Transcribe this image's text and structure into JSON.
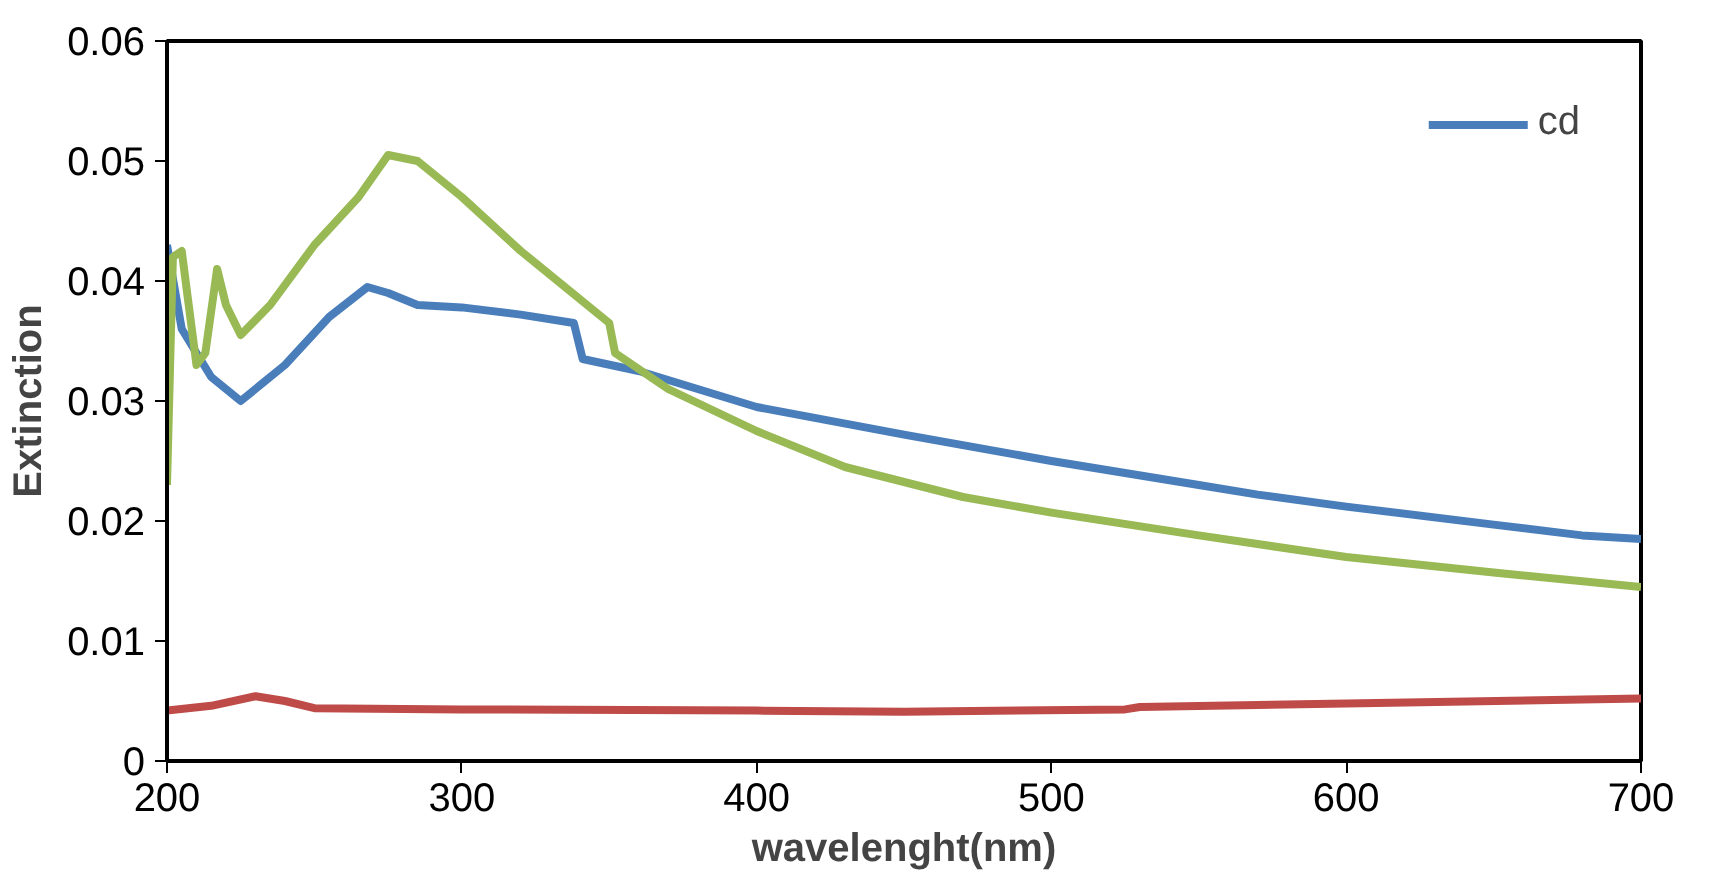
{
  "chart_data": {
    "type": "line",
    "xlabel": "wavelenght(nm)",
    "ylabel": "Extinction",
    "xlim": [
      200,
      700
    ],
    "xticks": [
      200,
      300,
      400,
      500,
      600,
      700
    ],
    "ylim": [
      0,
      0.06
    ],
    "yticks": [
      0,
      0.01,
      0.02,
      0.03,
      0.04,
      0.05,
      0.06
    ],
    "grid": false,
    "legend": "top right",
    "marker": "none",
    "line_style": "solid",
    "series": [
      {
        "name": "cd",
        "color": "#4a7ebb",
        "x": [
          200,
          205,
          215,
          225,
          240,
          255,
          268,
          275,
          285,
          300,
          320,
          338,
          341,
          360,
          400,
          450,
          500,
          550,
          570,
          600,
          650,
          680,
          700
        ],
        "values": [
          0.043,
          0.036,
          0.032,
          0.03,
          0.033,
          0.037,
          0.0395,
          0.039,
          0.038,
          0.0378,
          0.0372,
          0.0365,
          0.0335,
          0.0325,
          0.0295,
          0.0272,
          0.025,
          0.023,
          0.0222,
          0.0212,
          0.0197,
          0.0188,
          0.0185
        ]
      },
      {
        "color": "#98b954",
        "x": [
          200,
          202,
          205,
          210,
          213,
          217,
          220,
          225,
          235,
          250,
          265,
          275,
          285,
          300,
          320,
          345,
          350,
          352,
          370,
          400,
          430,
          470,
          500,
          550,
          600,
          650,
          700
        ],
        "values": [
          0.023,
          0.042,
          0.0425,
          0.033,
          0.034,
          0.041,
          0.038,
          0.0355,
          0.038,
          0.043,
          0.047,
          0.0505,
          0.05,
          0.047,
          0.0425,
          0.0375,
          0.0365,
          0.034,
          0.031,
          0.0275,
          0.0245,
          0.022,
          0.0207,
          0.0188,
          0.017,
          0.0157,
          0.0145
        ]
      },
      {
        "color": "#be4b48",
        "x": [
          200,
          215,
          230,
          240,
          250,
          300,
          400,
          450,
          525,
          530,
          600,
          700
        ],
        "values": [
          0.0042,
          0.0046,
          0.0054,
          0.005,
          0.0044,
          0.0043,
          0.0042,
          0.0041,
          0.0043,
          0.0045,
          0.0048,
          0.0052
        ]
      }
    ]
  }
}
